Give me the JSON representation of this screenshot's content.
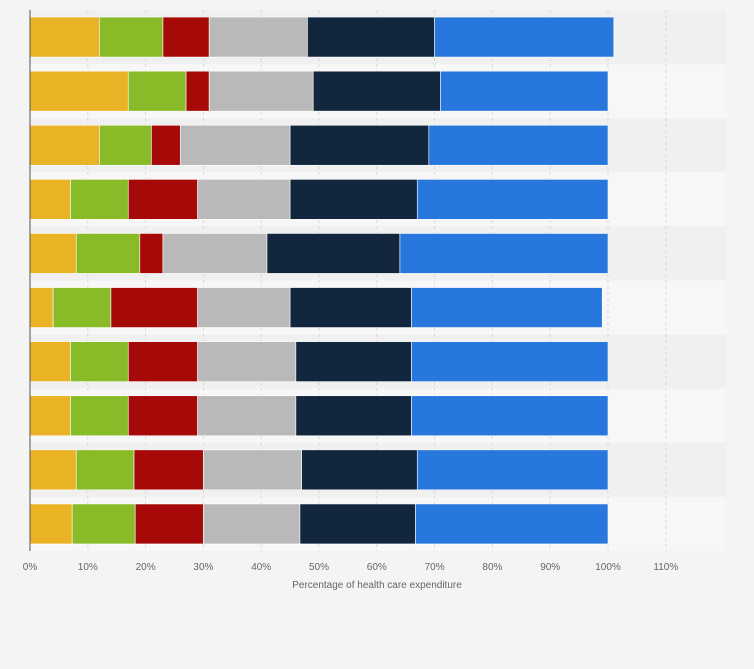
{
  "chart_data": {
    "type": "bar",
    "orientation": "horizontal",
    "stacked": true,
    "title": "",
    "xlabel": "Percentage of health care expenditure",
    "ylabel": "",
    "xlim": [
      0,
      120
    ],
    "x_ticks": [
      0,
      10,
      20,
      30,
      40,
      50,
      60,
      70,
      80,
      90,
      100,
      110
    ],
    "x_tick_labels": [
      "0%",
      "10%",
      "20%",
      "30%",
      "40%",
      "50%",
      "60%",
      "70%",
      "80%",
      "90%",
      "100%",
      "110%"
    ],
    "grid": true,
    "legend": "none",
    "categories": [
      "",
      "",
      "",
      "",
      "",
      "",
      "",
      "",
      "",
      ""
    ],
    "series": [
      {
        "name": "",
        "color": "#e9b325",
        "values": [
          12,
          17,
          12,
          7,
          8,
          4,
          7,
          7,
          8,
          7.3
        ]
      },
      {
        "name": "",
        "color": "#88bb27",
        "values": [
          11,
          10,
          9,
          10,
          11,
          10,
          10,
          10,
          10,
          10.9
        ]
      },
      {
        "name": "",
        "color": "#a50a09",
        "values": [
          8,
          4,
          5,
          12,
          4,
          15,
          12,
          12,
          12,
          11.8
        ]
      },
      {
        "name": "",
        "color": "#b9b9b9",
        "values": [
          17,
          18,
          19,
          16,
          18,
          16,
          17,
          17,
          17,
          16.7
        ]
      },
      {
        "name": "",
        "color": "#12263d",
        "values": [
          22,
          22,
          24,
          22,
          23,
          21,
          20,
          20,
          20,
          20
        ]
      },
      {
        "name": "",
        "color": "#2777dc",
        "values": [
          31,
          29,
          31,
          33,
          36,
          33,
          34,
          34,
          33,
          33.3
        ]
      }
    ]
  }
}
